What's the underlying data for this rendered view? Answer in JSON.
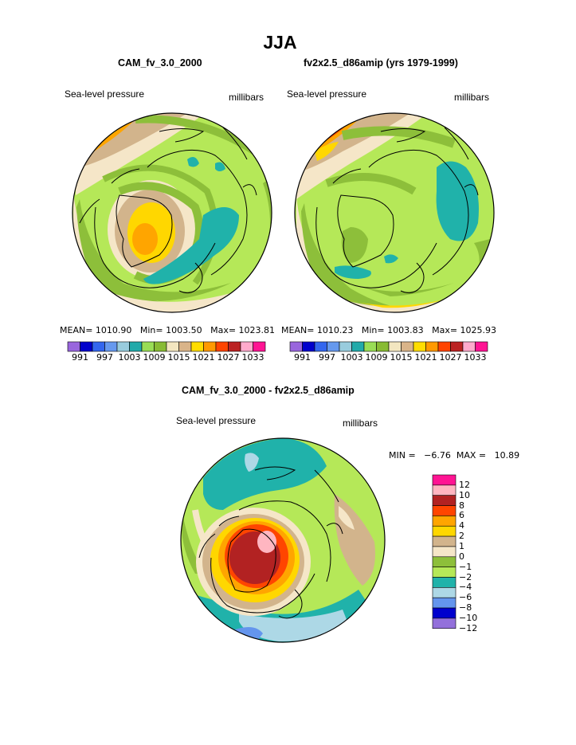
{
  "page": {
    "title": "JJA"
  },
  "panels": [
    {
      "title": "CAM_fv_3.0_2000",
      "left_label": "Sea-level pressure",
      "right_label": "millibars",
      "stats": "MEAN= 1010.90   Min= 1003.50   Max= 1023.81",
      "colorbar_labels": [
        "991",
        "997",
        "1003",
        "1009",
        "1015",
        "1021",
        "1027",
        "1033"
      ]
    },
    {
      "title": "fv2x2.5_d86amip (yrs 1979-1999)",
      "left_label": "Sea-level pressure",
      "right_label": "millibars",
      "stats": "MEAN= 1010.23   Min= 1003.83   Max= 1025.93",
      "colorbar_labels": [
        "991",
        "997",
        "1003",
        "1009",
        "1015",
        "1021",
        "1027",
        "1033"
      ]
    }
  ],
  "diff": {
    "title": "CAM_fv_3.0_2000 - fv2x2.5_d86amip",
    "left_label": "Sea-level pressure",
    "right_label": "millibars",
    "minmax": "MIN =   −6.76  MAX =   10.89",
    "legend_labels": [
      "12",
      "10",
      "8",
      "6",
      "4",
      "2",
      "1",
      "0",
      "−1",
      "−2",
      "−4",
      "−6",
      "−8",
      "−10",
      "−12"
    ]
  },
  "chart_data": [
    {
      "type": "heatmap",
      "title": "CAM_fv_3.0_2000",
      "variable": "Sea-level pressure",
      "units": "millibars",
      "projection": "north polar stereographic",
      "mean": 1010.9,
      "min": 1003.5,
      "max": 1023.81,
      "levels": [
        991,
        994,
        997,
        1000,
        1003,
        1006,
        1009,
        1012,
        1015,
        1018,
        1021,
        1024,
        1027,
        1030,
        1033
      ]
    },
    {
      "type": "heatmap",
      "title": "fv2x2.5_d86amip (yrs 1979-1999)",
      "variable": "Sea-level pressure",
      "units": "millibars",
      "projection": "north polar stereographic",
      "mean": 1010.23,
      "min": 1003.83,
      "max": 1025.93,
      "levels": [
        991,
        994,
        997,
        1000,
        1003,
        1006,
        1009,
        1012,
        1015,
        1018,
        1021,
        1024,
        1027,
        1030,
        1033
      ]
    },
    {
      "type": "heatmap",
      "title": "CAM_fv_3.0_2000 - fv2x2.5_d86amip",
      "variable": "Sea-level pressure",
      "units": "millibars",
      "projection": "north polar stereographic",
      "min": -6.76,
      "max": 10.89,
      "levels": [
        -12,
        -10,
        -8,
        -6,
        -4,
        -2,
        -1,
        0,
        1,
        2,
        4,
        6,
        8,
        10,
        12
      ]
    }
  ],
  "colors": {
    "abs_scale": [
      "#9966dd",
      "#0000cc",
      "#3366ee",
      "#6699ee",
      "#99ccdd",
      "#22aaaa",
      "#99dd55",
      "#88bb33",
      "#f3e6c0",
      "#d9b489",
      "#ffdd00",
      "#ff9900",
      "#ff4400",
      "#bb2222",
      "#ffaacc",
      "#ff1493"
    ],
    "diff_scale_top_to_bottom": [
      "#ff1493",
      "#ffb6c1",
      "#b22222",
      "#ff4500",
      "#ffa500",
      "#ffd700",
      "#d2b48c",
      "#f5e6c8",
      "#8dbf3a",
      "#b5e858",
      "#20b2aa",
      "#add8e6",
      "#6495ed",
      "#0000cd",
      "#9370db"
    ]
  }
}
